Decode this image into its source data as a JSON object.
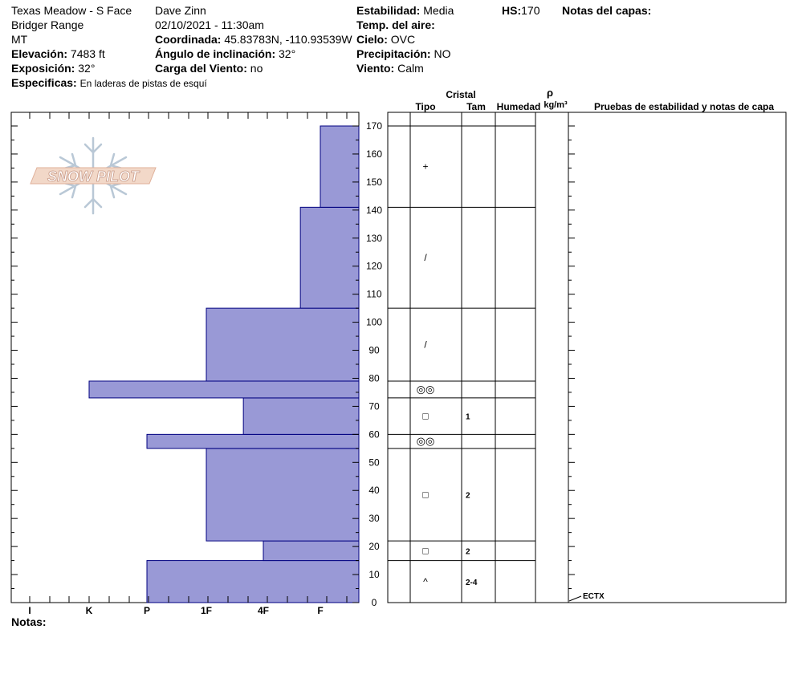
{
  "header": {
    "location": "Texas Meadow - S Face",
    "range": "Bridger Range",
    "state": "MT",
    "elevation_label": "Elevación:",
    "elevation_value": "7483 ft",
    "aspect_label": "Exposición:",
    "aspect_value": "32°",
    "specifics_label": "Especificas:",
    "specifics_value": "En laderas de pistas de esquí",
    "observer": "Dave Zinn",
    "datetime": "02/10/2021 - 11:30am",
    "coord_label": "Coordinada:",
    "coord_value": "45.83783N, -110.93539W",
    "slope_label": "Ángulo de inclinación:",
    "slope_value": "32°",
    "wind_load_label": "Carga del Viento:",
    "wind_load_value": "no",
    "stability_label": "Estabilidad:",
    "stability_value": "Media",
    "air_temp_label": "Temp. del aire:",
    "sky_label": "Cielo:",
    "sky_value": "OVC",
    "precip_label": "Precipitación:",
    "precip_value": "NO",
    "wind_label": "Viento:",
    "wind_value": "Calm",
    "hs_label": "HS:",
    "hs_value": "170",
    "layer_notes_label": "Notas del capas:"
  },
  "footer": {
    "notes_label": "Notas:"
  },
  "logo": {
    "text": "SNOW PILOT"
  },
  "columns": {
    "crystal": "Cristal",
    "type": "Tipo",
    "size": "Tam",
    "moisture": "Humedad",
    "rho": "ρ",
    "density_unit": "kg/m³",
    "tests": "Pruebas de estabilidad y notas de capa"
  },
  "colors": {
    "bar_fill": "#9999d6",
    "bar_stroke": "#000080"
  },
  "chart_data": {
    "type": "bar",
    "orientation": "horizontal",
    "xlabel": "",
    "ylabel": "",
    "ylim": [
      0,
      170
    ],
    "yticks": [
      0,
      10,
      20,
      30,
      40,
      50,
      60,
      70,
      80,
      90,
      100,
      110,
      120,
      130,
      140,
      150,
      160,
      170
    ],
    "hardness_scale": [
      "I",
      "K",
      "P",
      "1F",
      "4F",
      "F"
    ],
    "layers": [
      {
        "bottom": 0,
        "top": 15,
        "hardness": "P",
        "hardness_index": 2,
        "grain": "^",
        "size": "2-4"
      },
      {
        "bottom": 15,
        "top": 22,
        "hardness": "4F",
        "hardness_index": 4,
        "grain": "□",
        "size": "2"
      },
      {
        "bottom": 22,
        "top": 55,
        "hardness": "1F",
        "hardness_index": 3,
        "grain": "□",
        "size": "2"
      },
      {
        "bottom": 55,
        "top": 60,
        "hardness": "P",
        "hardness_index": 2,
        "grain": "◎◎",
        "size": ""
      },
      {
        "bottom": 60,
        "top": 73,
        "hardness": "1F-4F",
        "hardness_index": 3.65,
        "grain": "□",
        "size": "1"
      },
      {
        "bottom": 73,
        "top": 79,
        "hardness": "K",
        "hardness_index": 1,
        "grain": "◎◎",
        "size": ""
      },
      {
        "bottom": 79,
        "top": 105,
        "hardness": "1F",
        "hardness_index": 3,
        "grain": "/",
        "size": ""
      },
      {
        "bottom": 105,
        "top": 141,
        "hardness": "4F-F",
        "hardness_index": 4.65,
        "grain": "/",
        "size": ""
      },
      {
        "bottom": 141,
        "top": 170,
        "hardness": "F",
        "hardness_index": 5,
        "grain": "+",
        "size": ""
      }
    ],
    "tests": [
      {
        "label": "ECTX",
        "depth": 0
      }
    ]
  }
}
